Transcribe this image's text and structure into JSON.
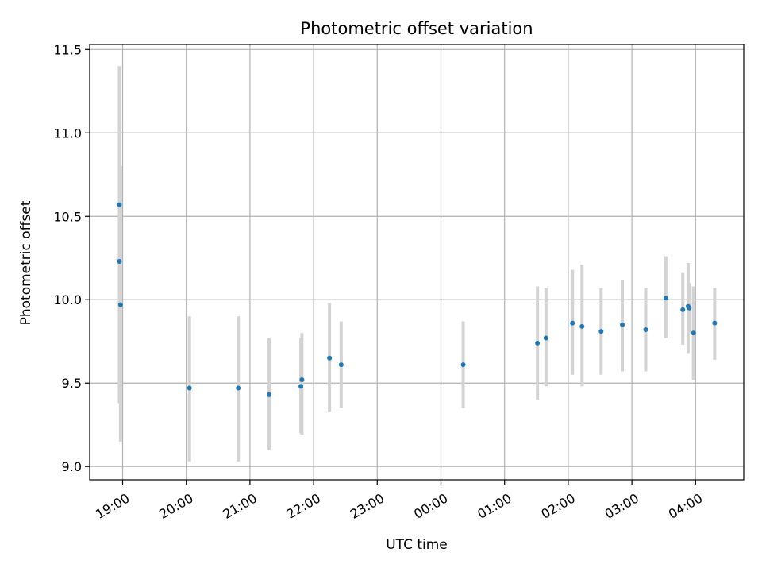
{
  "chart_data": {
    "type": "scatter",
    "title": "Photometric offset variation",
    "xlabel": "UTC time",
    "ylabel": "Photometric offset",
    "x_tick_labels": [
      "19:00",
      "20:00",
      "21:00",
      "22:00",
      "23:00",
      "00:00",
      "01:00",
      "02:00",
      "03:00",
      "04:00"
    ],
    "y_ticks": [
      9.0,
      9.5,
      10.0,
      10.5,
      11.0,
      11.5
    ],
    "y_tick_labels": [
      "9.0",
      "9.5",
      "10.0",
      "10.5",
      "11.0",
      "11.5"
    ],
    "ylim": [
      8.92,
      11.53
    ],
    "grid": true,
    "colors": {
      "point": "#1f77b4",
      "errorbar": "#d3d3d3"
    },
    "points": [
      {
        "time": "18:57",
        "value": 10.57,
        "low": 9.38,
        "high": 11.4
      },
      {
        "time": "18:57",
        "value": 10.23,
        "low": 9.4,
        "high": 11.05
      },
      {
        "time": "18:58",
        "value": 9.97,
        "low": 9.15,
        "high": 10.8
      },
      {
        "time": "20:03",
        "value": 9.47,
        "low": 9.03,
        "high": 9.9
      },
      {
        "time": "20:49",
        "value": 9.47,
        "low": 9.03,
        "high": 9.9
      },
      {
        "time": "21:18",
        "value": 9.43,
        "low": 9.1,
        "high": 9.77
      },
      {
        "time": "21:48",
        "value": 9.48,
        "low": 9.2,
        "high": 9.77
      },
      {
        "time": "21:49",
        "value": 9.52,
        "low": 9.19,
        "high": 9.8
      },
      {
        "time": "22:15",
        "value": 9.65,
        "low": 9.33,
        "high": 9.98
      },
      {
        "time": "22:26",
        "value": 9.61,
        "low": 9.35,
        "high": 9.87
      },
      {
        "time": "00:21",
        "value": 9.61,
        "low": 9.35,
        "high": 9.87
      },
      {
        "time": "01:31",
        "value": 9.74,
        "low": 9.4,
        "high": 10.08
      },
      {
        "time": "01:39",
        "value": 9.77,
        "low": 9.48,
        "high": 10.07
      },
      {
        "time": "02:04",
        "value": 9.86,
        "low": 9.55,
        "high": 10.18
      },
      {
        "time": "02:13",
        "value": 9.84,
        "low": 9.48,
        "high": 10.21
      },
      {
        "time": "02:31",
        "value": 9.81,
        "low": 9.55,
        "high": 10.07
      },
      {
        "time": "02:51",
        "value": 9.85,
        "low": 9.57,
        "high": 10.12
      },
      {
        "time": "03:13",
        "value": 9.82,
        "low": 9.57,
        "high": 10.07
      },
      {
        "time": "03:32",
        "value": 10.01,
        "low": 9.77,
        "high": 10.26
      },
      {
        "time": "03:48",
        "value": 9.94,
        "low": 9.73,
        "high": 10.16
      },
      {
        "time": "03:53",
        "value": 9.96,
        "low": 9.68,
        "high": 10.22
      },
      {
        "time": "03:54",
        "value": 9.95,
        "low": 9.8,
        "high": 10.1
      },
      {
        "time": "03:58",
        "value": 9.8,
        "low": 9.52,
        "high": 10.08
      },
      {
        "time": "04:18",
        "value": 9.86,
        "low": 9.64,
        "high": 10.07
      }
    ]
  }
}
